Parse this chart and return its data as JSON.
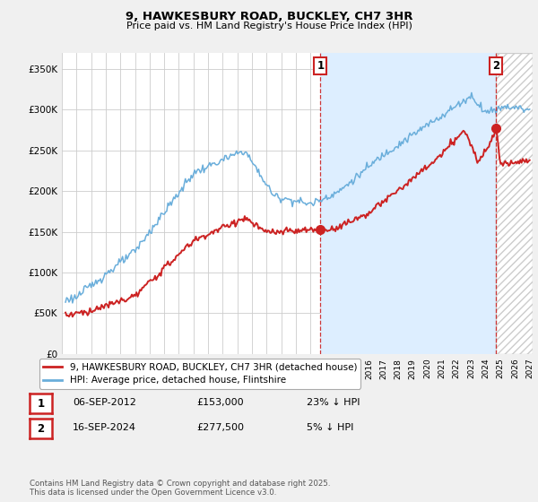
{
  "title": "9, HAWKESBURY ROAD, BUCKLEY, CH7 3HR",
  "subtitle": "Price paid vs. HM Land Registry's House Price Index (HPI)",
  "ylabel_ticks": [
    "£0",
    "£50K",
    "£100K",
    "£150K",
    "£200K",
    "£250K",
    "£300K",
    "£350K"
  ],
  "ytick_vals": [
    0,
    50000,
    100000,
    150000,
    200000,
    250000,
    300000,
    350000
  ],
  "ylim": [
    0,
    370000
  ],
  "xlim_start": 1995.3,
  "xlim_end": 2027.2,
  "hpi_color": "#6aaedb",
  "price_color": "#cc2222",
  "marker1_date": 2012.68,
  "marker2_date": 2024.71,
  "marker1_price": 153000,
  "marker2_price": 277500,
  "legend_house": "9, HAWKESBURY ROAD, BUCKLEY, CH7 3HR (detached house)",
  "legend_hpi": "HPI: Average price, detached house, Flintshire",
  "ann1_text1": "06-SEP-2012",
  "ann1_text2": "£153,000",
  "ann1_text3": "23% ↓ HPI",
  "ann2_text1": "16-SEP-2024",
  "ann2_text2": "£277,500",
  "ann2_text3": "5% ↓ HPI",
  "footer": "Contains HM Land Registry data © Crown copyright and database right 2025.\nThis data is licensed under the Open Government Licence v3.0.",
  "bg_color": "#f0f0f0",
  "plot_bg_color": "#ffffff",
  "shade_color": "#ddeeff",
  "grid_color": "#cccccc",
  "hatch_color": "#cccccc"
}
